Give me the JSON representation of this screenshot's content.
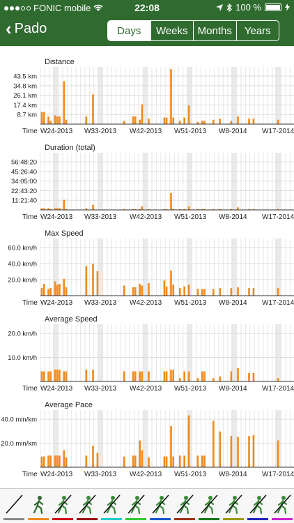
{
  "status": {
    "carrier": "FONIC mobile",
    "time": "22:08",
    "battery": "100 %"
  },
  "nav": {
    "back_label": "Pado",
    "segments": [
      {
        "label": "Days",
        "active": true
      },
      {
        "label": "Weeks",
        "active": false
      },
      {
        "label": "Months",
        "active": false
      },
      {
        "label": "Years",
        "active": false
      }
    ]
  },
  "chart_data": [
    {
      "type": "bar",
      "title": "Distance",
      "x_axis_label": "Time",
      "x_tick_labels": [
        "W24-2013",
        "W33-2013",
        "W42-2013",
        "W51-2013",
        "W8-2014",
        "W17-2014"
      ],
      "y_tick_labels": [
        "8.7 km",
        "17.4 km",
        "26.1 km",
        "34.8 km",
        "43.5 km"
      ],
      "ylim": [
        0,
        52
      ],
      "grid": true,
      "bar_color": "#f08a1c",
      "values": [
        11,
        11,
        0,
        7,
        3,
        0,
        8,
        7,
        7,
        0,
        39,
        4,
        0,
        0,
        0,
        0,
        0,
        0,
        0,
        0,
        7,
        0,
        0,
        27,
        0,
        0,
        0,
        0,
        0,
        0,
        0,
        0,
        0,
        0,
        0,
        0,
        0,
        3,
        0,
        0,
        0,
        7,
        7,
        0,
        4,
        18,
        0,
        0,
        5,
        0,
        0,
        0,
        0,
        0,
        0,
        6,
        6,
        0,
        50,
        6,
        0,
        0,
        3,
        0,
        6,
        0,
        17,
        0,
        0,
        0,
        2,
        0,
        3,
        3,
        0,
        0,
        0,
        4,
        0,
        0,
        5,
        0,
        0,
        0,
        0,
        3,
        0,
        0,
        7,
        0,
        0,
        0,
        0,
        5,
        0,
        5,
        0,
        0,
        0,
        0,
        0,
        0,
        0,
        0,
        0,
        0,
        4,
        0,
        0,
        0,
        0,
        0
      ]
    },
    {
      "type": "bar",
      "title": "Duration (total)",
      "x_axis_label": "Time",
      "x_tick_labels": [
        "W24-2013",
        "W33-2013",
        "W42-2013",
        "W51-2013",
        "W8-2014",
        "W17-2014"
      ],
      "y_tick_labels": [
        "11:21:40",
        "22:43:20",
        "34:05:00",
        "45:26:40",
        "56:48:20"
      ],
      "ylim": [
        0,
        68
      ],
      "grid": true,
      "bar_color": "#f08a1c",
      "values": [
        2,
        2,
        0,
        2,
        1,
        0,
        2,
        2,
        2,
        0,
        12,
        1,
        0,
        0,
        0,
        0,
        0,
        0,
        0,
        0,
        2,
        0,
        0,
        6,
        0,
        0,
        0,
        0,
        0,
        0,
        0,
        0,
        0,
        0,
        0,
        0,
        0,
        1,
        0,
        0,
        0,
        1,
        1,
        0,
        1,
        4,
        0,
        0,
        1,
        0,
        0,
        0,
        0,
        0,
        0,
        1,
        1,
        0,
        20,
        1,
        0,
        0,
        1,
        0,
        1,
        0,
        4,
        0,
        0,
        0,
        1,
        0,
        1,
        1,
        0,
        0,
        0,
        1,
        0,
        0,
        1,
        0,
        0,
        0,
        0,
        1,
        0,
        0,
        3,
        0,
        0,
        0,
        0,
        1,
        0,
        1,
        0,
        0,
        0,
        0,
        0,
        0,
        0,
        0,
        0,
        0,
        1,
        0,
        0,
        0,
        0,
        0
      ]
    },
    {
      "type": "bar",
      "title": "Max Speed",
      "x_axis_label": "Time",
      "x_tick_labels": [
        "W24-2013",
        "W33-2013",
        "W42-2013",
        "W51-2013",
        "W8-2014",
        "W17-2014"
      ],
      "y_tick_labels": [
        "20.0 km/h",
        "40.0 km/h",
        "60.0 km/h"
      ],
      "ylim": [
        0,
        68
      ],
      "grid": true,
      "bar_color": "#f08a1c",
      "values": [
        9,
        14,
        0,
        8,
        9,
        0,
        17,
        13,
        14,
        0,
        20,
        10,
        0,
        0,
        0,
        0,
        0,
        0,
        0,
        0,
        35,
        0,
        0,
        38,
        0,
        29,
        0,
        0,
        0,
        0,
        0,
        0,
        0,
        0,
        0,
        0,
        0,
        12,
        0,
        0,
        0,
        10,
        10,
        0,
        14,
        12,
        0,
        0,
        15,
        0,
        0,
        0,
        0,
        0,
        0,
        18,
        11,
        0,
        30,
        13,
        0,
        0,
        9,
        0,
        11,
        0,
        13,
        0,
        0,
        0,
        8,
        0,
        8,
        8,
        0,
        0,
        0,
        8,
        0,
        0,
        9,
        0,
        0,
        0,
        0,
        9,
        0,
        0,
        10,
        0,
        0,
        0,
        0,
        9,
        0,
        9,
        0,
        0,
        0,
        0,
        0,
        0,
        0,
        0,
        0,
        0,
        9,
        0,
        0,
        0,
        0,
        0
      ]
    },
    {
      "type": "bar",
      "title": "Average Speed",
      "x_axis_label": "Time",
      "x_tick_labels": [
        "W24-2013",
        "W33-2013",
        "W42-2013",
        "W51-2013",
        "W8-2014",
        "W17-2014"
      ],
      "y_tick_labels": [
        "10.0 km/h",
        "20.0 km/h"
      ],
      "ylim": [
        0,
        34
      ],
      "grid": true,
      "bar_color": "#f08a1c",
      "values": [
        6,
        6,
        0,
        6,
        6,
        0,
        7,
        7,
        7,
        0,
        6,
        6,
        0,
        0,
        0,
        0,
        0,
        0,
        0,
        0,
        7,
        0,
        0,
        7,
        0,
        0,
        0,
        0,
        0,
        0,
        0,
        0,
        0,
        0,
        0,
        0,
        0,
        6,
        0,
        0,
        0,
        6,
        6,
        0,
        6,
        6,
        0,
        0,
        6,
        0,
        0,
        0,
        0,
        0,
        0,
        6,
        6,
        0,
        7,
        7,
        0,
        0,
        2,
        0,
        6,
        0,
        6,
        0,
        0,
        0,
        2,
        0,
        6,
        6,
        0,
        0,
        0,
        2,
        0,
        0,
        3,
        0,
        0,
        0,
        0,
        6,
        0,
        0,
        8,
        0,
        0,
        0,
        0,
        5,
        0,
        5,
        0,
        0,
        0,
        0,
        0,
        0,
        0,
        0,
        0,
        0,
        2,
        0,
        0,
        0,
        0,
        0
      ]
    },
    {
      "type": "bar",
      "title": "Average Pace",
      "x_axis_label": "Time",
      "x_tick_labels": [
        "W24-2013",
        "W33-2013",
        "W42-2013",
        "W51-2013",
        "W8-2014",
        "W17-2014"
      ],
      "y_tick_labels": [
        "20.0 min/km",
        "40.0 min/km"
      ],
      "ylim": [
        0,
        64
      ],
      "grid": true,
      "bar_color": "#f08a1c",
      "values": [
        12,
        12,
        0,
        13,
        13,
        0,
        13,
        13,
        13,
        0,
        19,
        11,
        0,
        0,
        0,
        0,
        0,
        0,
        0,
        0,
        13,
        0,
        0,
        24,
        0,
        16,
        0,
        0,
        0,
        0,
        0,
        0,
        0,
        0,
        0,
        0,
        0,
        12,
        0,
        0,
        0,
        13,
        13,
        0,
        30,
        19,
        0,
        0,
        11,
        0,
        0,
        0,
        0,
        0,
        0,
        12,
        12,
        0,
        46,
        12,
        0,
        0,
        13,
        0,
        13,
        0,
        58,
        0,
        0,
        0,
        13,
        0,
        13,
        13,
        0,
        0,
        0,
        52,
        0,
        0,
        40,
        0,
        0,
        0,
        0,
        35,
        0,
        0,
        34,
        0,
        0,
        0,
        0,
        35,
        0,
        36,
        0,
        0,
        0,
        0,
        0,
        0,
        0,
        0,
        0,
        0,
        30,
        0,
        0,
        0,
        0,
        0
      ]
    }
  ],
  "activities": [
    {
      "name": "all-activities",
      "icon": "slash-icon",
      "color": "#888888",
      "selected": false
    },
    {
      "name": "walking",
      "icon": "walking-icon",
      "color": "#f08a1c",
      "selected": true
    },
    {
      "name": "running",
      "icon": "running-icon",
      "color": "#cc1111",
      "selected": false
    },
    {
      "name": "hiking",
      "icon": "hiking-icon",
      "color": "#991111",
      "selected": false
    },
    {
      "name": "cycling",
      "icon": "cycling-icon",
      "color": "#22cccc",
      "selected": false
    },
    {
      "name": "mountain-biking",
      "icon": "mountain-bike-icon",
      "color": "#33cc33",
      "selected": false
    },
    {
      "name": "inline-skating",
      "icon": "skating-icon",
      "color": "#1155cc",
      "selected": false
    },
    {
      "name": "skiing",
      "icon": "skiing-icon",
      "color": "#993311",
      "selected": false
    },
    {
      "name": "motorbike",
      "icon": "motorbike-icon",
      "color": "#117711",
      "selected": false
    },
    {
      "name": "car",
      "icon": "car-icon",
      "color": "#999911",
      "selected": false
    },
    {
      "name": "horse-riding",
      "icon": "horse-icon",
      "color": "#2222bb",
      "selected": false
    },
    {
      "name": "swimming",
      "icon": "swimming-icon",
      "color": "#cc22cc",
      "selected": false
    }
  ]
}
